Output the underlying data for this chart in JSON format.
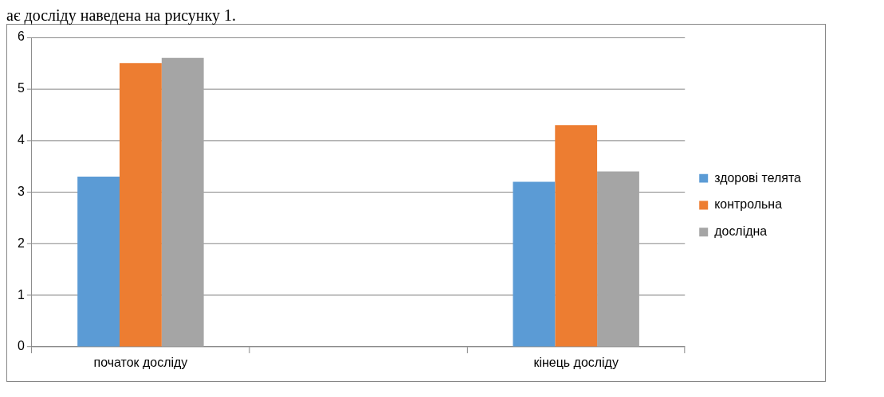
{
  "chart_data": {
    "type": "bar",
    "annotations": [
      "ає досліду наведена на рисунку 1."
    ],
    "categories": [
      "початок досліду",
      null,
      "кінець досліду"
    ],
    "series": [
      {
        "name": "здорові телята",
        "color": "#5b9bd5",
        "values": [
          3.3,
          null,
          3.2
        ]
      },
      {
        "name": "контрольна",
        "color": "#ed7d31",
        "values": [
          5.5,
          null,
          4.3
        ]
      },
      {
        "name": "дослідна",
        "color": "#a5a5a5",
        "values": [
          5.6,
          null,
          3.4
        ]
      }
    ],
    "ylim": [
      0,
      6
    ],
    "yticks": [
      0,
      1,
      2,
      3,
      4,
      5,
      6
    ],
    "grid": "y",
    "legend": "right"
  }
}
